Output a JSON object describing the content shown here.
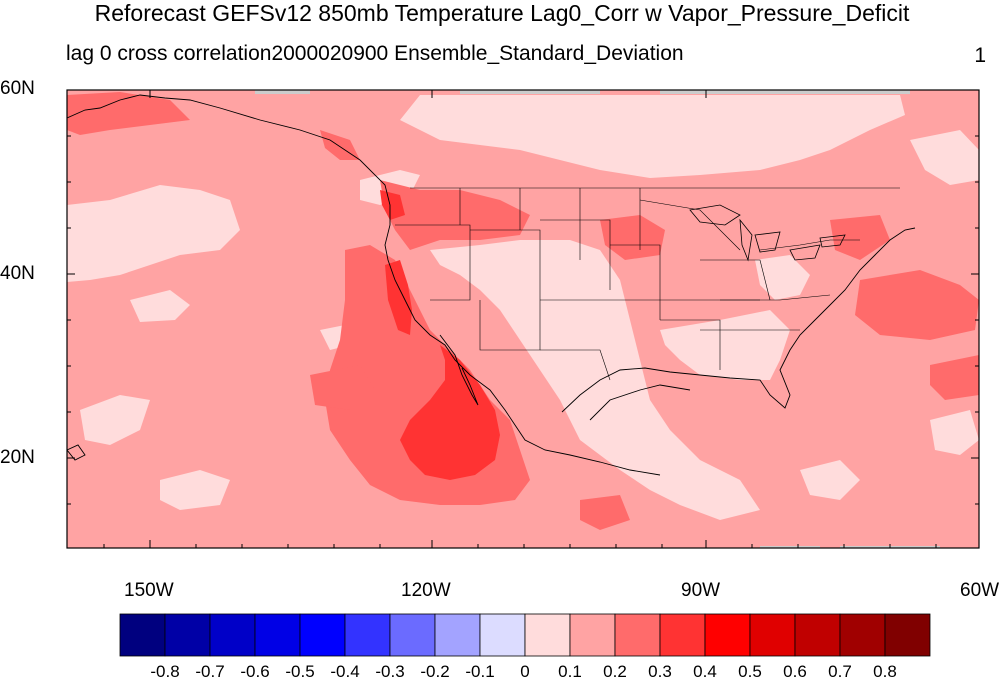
{
  "title": "Reforecast GEFSv12 850mb Temperature Lag0_Corr w Vapor_Pressure_Deficit",
  "subtitle_left": "lag 0 cross correlation",
  "subtitle_center": "2000020900 Ensemble_Standard_Deviation",
  "subtitle_right": "1",
  "map": {
    "lat_labels": [
      "60N",
      "40N",
      "20N"
    ],
    "lon_labels": [
      "150W",
      "120W",
      "90W",
      "60W"
    ],
    "lon_range": [
      -160,
      -60
    ],
    "lat_range": [
      10,
      60
    ]
  },
  "colorbar": {
    "labels": [
      "-0.8",
      "-0.7",
      "-0.6",
      "-0.5",
      "-0.4",
      "-0.3",
      "-0.2",
      "-0.1",
      "0",
      "0.1",
      "0.2",
      "0.3",
      "0.4",
      "0.5",
      "0.6",
      "0.7",
      "0.8"
    ],
    "colors": [
      "#00007f",
      "#0000a6",
      "#0000c8",
      "#0000e6",
      "#0000ff",
      "#3333ff",
      "#6b6bff",
      "#a3a3ff",
      "#dcdcff",
      "#ffdcdc",
      "#ffa3a3",
      "#ff6b6b",
      "#ff3333",
      "#ff0000",
      "#e00000",
      "#c00000",
      "#a00000",
      "#800000"
    ]
  },
  "colors": {
    "level_0": "#ffdcdc",
    "level_01": "#ffa3a3",
    "level_02": "#ff6b6b",
    "level_03": "#ff3333",
    "missing": "#cccccc"
  }
}
